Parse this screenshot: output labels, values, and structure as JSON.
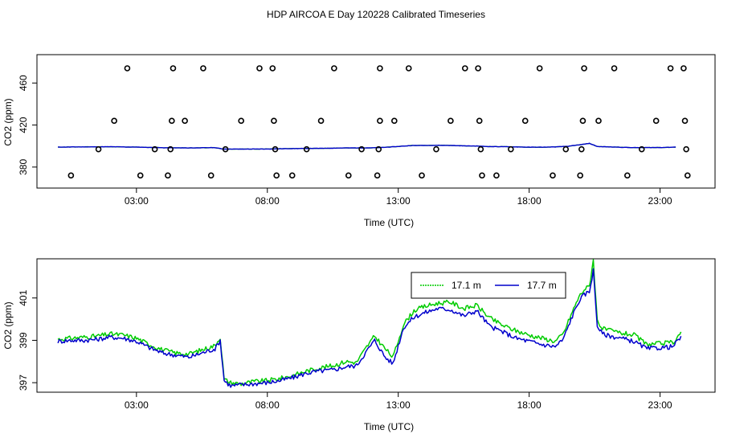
{
  "title": "HDP AIRCOA E  Day 120228  Calibrated Timeseries",
  "chart_data": [
    {
      "type": "scatter",
      "xlabel": "Time (UTC)",
      "ylabel": "CO2 (ppm)",
      "xticks": [
        3,
        8,
        13,
        18,
        23
      ],
      "xtick_labels": [
        "03:00",
        "08:00",
        "13:00",
        "18:00",
        "23:00"
      ],
      "yticks": [
        380,
        420,
        460
      ],
      "ytick_labels": [
        "380",
        "420",
        "460"
      ],
      "xlim": [
        -0.8,
        25.1
      ],
      "ylim": [
        360,
        487
      ],
      "grid": false,
      "legend": "none",
      "colors": {
        "points": "#000000",
        "line": "#0000cc",
        "line_under": "#00aa00"
      },
      "series": [
        {
          "x": [
            0.0,
            1.0,
            2.0,
            3.0,
            4.0,
            5.0,
            6.0,
            6.3,
            7.0,
            8.0,
            9.0,
            10.0,
            11.0,
            12.0,
            12.5,
            13.0,
            13.5,
            14.0,
            14.5,
            15.0,
            15.5,
            16.0,
            16.5,
            17.0,
            17.5,
            18.0,
            18.5,
            19.0,
            19.5,
            19.8,
            20.0,
            20.3,
            20.6,
            21.0,
            22.0,
            23.0,
            23.6
          ],
          "y": [
            399,
            399.2,
            399.3,
            399,
            398.4,
            398.2,
            398.5,
            397.2,
            397.1,
            397.2,
            397.6,
            397.8,
            398.2,
            398.3,
            398.8,
            399.6,
            400.5,
            400.6,
            400.7,
            400.6,
            400.2,
            400,
            399.5,
            399.4,
            399.2,
            398.9,
            398.9,
            399.2,
            399.8,
            400.8,
            401.4,
            402.6,
            399.6,
            399.2,
            398.5,
            398.6,
            399
          ]
        }
      ],
      "points": [
        {
          "x": 0.5,
          "y": 372
        },
        {
          "x": 1.55,
          "y": 397
        },
        {
          "x": 2.15,
          "y": 424
        },
        {
          "x": 2.65,
          "y": 474
        },
        {
          "x": 3.15,
          "y": 372
        },
        {
          "x": 3.7,
          "y": 397
        },
        {
          "x": 4.2,
          "y": 372
        },
        {
          "x": 4.3,
          "y": 397
        },
        {
          "x": 4.35,
          "y": 424
        },
        {
          "x": 4.4,
          "y": 474
        },
        {
          "x": 4.85,
          "y": 424
        },
        {
          "x": 5.55,
          "y": 474
        },
        {
          "x": 5.85,
          "y": 372
        },
        {
          "x": 6.4,
          "y": 397
        },
        {
          "x": 7.0,
          "y": 424
        },
        {
          "x": 7.7,
          "y": 474
        },
        {
          "x": 8.2,
          "y": 474
        },
        {
          "x": 8.25,
          "y": 424
        },
        {
          "x": 8.3,
          "y": 397
        },
        {
          "x": 8.35,
          "y": 372
        },
        {
          "x": 8.95,
          "y": 372
        },
        {
          "x": 9.5,
          "y": 397
        },
        {
          "x": 10.05,
          "y": 424
        },
        {
          "x": 10.55,
          "y": 474
        },
        {
          "x": 11.1,
          "y": 372
        },
        {
          "x": 11.6,
          "y": 397
        },
        {
          "x": 12.2,
          "y": 372
        },
        {
          "x": 12.25,
          "y": 397
        },
        {
          "x": 12.3,
          "y": 424
        },
        {
          "x": 12.3,
          "y": 474
        },
        {
          "x": 12.85,
          "y": 424
        },
        {
          "x": 13.4,
          "y": 474
        },
        {
          "x": 13.9,
          "y": 372
        },
        {
          "x": 14.45,
          "y": 397
        },
        {
          "x": 15.0,
          "y": 424
        },
        {
          "x": 15.55,
          "y": 474
        },
        {
          "x": 16.05,
          "y": 474
        },
        {
          "x": 16.1,
          "y": 424
        },
        {
          "x": 16.15,
          "y": 397
        },
        {
          "x": 16.2,
          "y": 372
        },
        {
          "x": 16.75,
          "y": 372
        },
        {
          "x": 17.3,
          "y": 397
        },
        {
          "x": 17.85,
          "y": 424
        },
        {
          "x": 18.4,
          "y": 474
        },
        {
          "x": 18.9,
          "y": 372
        },
        {
          "x": 19.4,
          "y": 397
        },
        {
          "x": 19.95,
          "y": 372
        },
        {
          "x": 20.0,
          "y": 397
        },
        {
          "x": 20.05,
          "y": 424
        },
        {
          "x": 20.1,
          "y": 474
        },
        {
          "x": 20.65,
          "y": 424
        },
        {
          "x": 21.25,
          "y": 474
        },
        {
          "x": 21.75,
          "y": 372
        },
        {
          "x": 22.3,
          "y": 397
        },
        {
          "x": 22.85,
          "y": 424
        },
        {
          "x": 23.4,
          "y": 474
        },
        {
          "x": 23.9,
          "y": 474
        },
        {
          "x": 23.95,
          "y": 424
        },
        {
          "x": 24.0,
          "y": 397
        },
        {
          "x": 24.05,
          "y": 372
        }
      ]
    },
    {
      "type": "line",
      "xlabel": "Time (UTC)",
      "ylabel": "CO2 (ppm)",
      "xticks": [
        3,
        8,
        13,
        18,
        23
      ],
      "xtick_labels": [
        "03:00",
        "08:00",
        "13:00",
        "18:00",
        "23:00"
      ],
      "yticks": [
        397,
        399,
        401
      ],
      "ytick_labels": [
        "397",
        "399",
        "401"
      ],
      "xlim": [
        -0.8,
        25.1
      ],
      "ylim": [
        396.55,
        402.85
      ],
      "grid": false,
      "legend": "top-center",
      "series": [
        {
          "name": "17.1 m",
          "color": "#00cc00",
          "x": [
            0.0,
            0.5,
            1.0,
            1.5,
            2.0,
            2.5,
            3.0,
            3.5,
            4.0,
            4.5,
            5.0,
            5.5,
            6.0,
            6.2,
            6.35,
            6.6,
            7.0,
            7.5,
            8.0,
            8.5,
            9.0,
            9.5,
            10.0,
            10.5,
            11.0,
            11.4,
            11.8,
            12.1,
            12.5,
            12.8,
            13.2,
            13.6,
            14.0,
            14.5,
            15.0,
            15.5,
            16.0,
            16.5,
            17.0,
            17.5,
            18.0,
            18.5,
            19.0,
            19.3,
            19.6,
            19.9,
            20.1,
            20.3,
            20.45,
            20.6,
            20.8,
            21.1,
            21.5,
            22.0,
            22.5,
            23.0,
            23.5,
            23.8
          ],
          "y": [
            399.05,
            399.1,
            399.15,
            399.2,
            399.3,
            399.25,
            399.1,
            398.8,
            398.55,
            398.4,
            398.35,
            398.55,
            398.75,
            399.15,
            397.15,
            397.0,
            396.95,
            397.05,
            397.1,
            397.2,
            397.35,
            397.55,
            397.7,
            397.8,
            398.0,
            397.95,
            398.7,
            399.2,
            398.6,
            398.2,
            399.75,
            400.4,
            400.6,
            400.75,
            400.8,
            400.5,
            400.65,
            400.05,
            399.7,
            399.45,
            399.25,
            399.1,
            398.95,
            399.3,
            400.2,
            401.05,
            401.4,
            401.55,
            402.8,
            399.95,
            399.55,
            399.45,
            399.35,
            399.25,
            398.8,
            398.85,
            398.9,
            399.4
          ]
        },
        {
          "name": "17.7 m",
          "color": "#0000cc",
          "x": [
            0.0,
            0.5,
            1.0,
            1.5,
            2.0,
            2.5,
            3.0,
            3.5,
            4.0,
            4.5,
            5.0,
            5.5,
            6.0,
            6.2,
            6.35,
            6.6,
            7.0,
            7.5,
            8.0,
            8.5,
            9.0,
            9.5,
            10.0,
            10.5,
            11.0,
            11.4,
            11.8,
            12.1,
            12.5,
            12.8,
            13.2,
            13.6,
            14.0,
            14.5,
            15.0,
            15.5,
            16.0,
            16.5,
            17.0,
            17.5,
            18.0,
            18.5,
            19.0,
            19.3,
            19.6,
            19.9,
            20.1,
            20.3,
            20.45,
            20.6,
            20.8,
            21.1,
            21.5,
            22.0,
            22.5,
            23.0,
            23.5,
            23.8
          ],
          "y": [
            398.95,
            399.0,
            399.0,
            399.05,
            399.15,
            399.1,
            398.95,
            398.65,
            398.4,
            398.3,
            398.2,
            398.4,
            398.6,
            399.0,
            397.1,
            396.85,
            396.9,
            396.95,
            397.0,
            397.1,
            397.25,
            397.45,
            397.55,
            397.6,
            397.75,
            397.8,
            398.5,
            399.0,
            398.2,
            397.9,
            399.6,
            400.1,
            400.3,
            400.5,
            400.45,
            400.15,
            400.4,
            399.65,
            399.4,
            399.1,
            398.95,
            398.8,
            398.7,
            399.05,
            400.0,
            400.85,
            401.15,
            401.3,
            402.3,
            399.7,
            399.3,
            399.2,
            399.1,
            398.95,
            398.6,
            398.65,
            398.7,
            399.2
          ]
        }
      ]
    }
  ]
}
